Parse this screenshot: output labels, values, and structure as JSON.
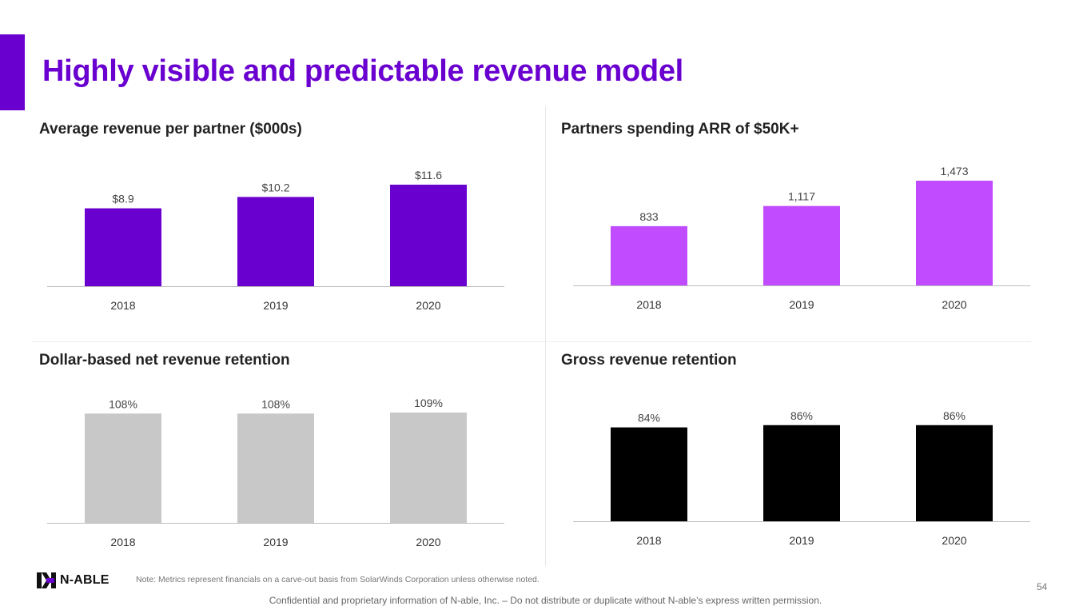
{
  "slide": {
    "title": "Highly visible and predictable revenue model",
    "accent_color": "#6a00d0",
    "footnote": "Note: Metrics represent financials on a carve-out basis from SolarWinds Corporation unless otherwise noted.",
    "page_number": "54",
    "confidential": "Confidential and proprietary information of N-able, Inc. – Do not distribute or duplicate without N-able’s express written permission.",
    "logo_text": "N-ABLE"
  },
  "chart_data": [
    {
      "type": "bar",
      "title": "Average revenue per partner ($000s)",
      "categories": [
        "2018",
        "2019",
        "2020"
      ],
      "values": [
        8.9,
        10.2,
        11.6
      ],
      "labels": [
        "$8.9",
        "$10.2",
        "$11.6"
      ],
      "ylim": [
        0,
        11.6
      ],
      "color": "#6a00d0"
    },
    {
      "type": "bar",
      "title": "Partners spending ARR of $50K+",
      "categories": [
        "2018",
        "2019",
        "2020"
      ],
      "values": [
        833,
        1117,
        1473
      ],
      "labels": [
        "833",
        "1,117",
        "1,473"
      ],
      "ylim": [
        0,
        1473
      ],
      "color": "#c04bff"
    },
    {
      "type": "bar",
      "title": "Dollar-based net revenue retention",
      "categories": [
        "2018",
        "2019",
        "2020"
      ],
      "values": [
        108,
        108,
        109
      ],
      "labels": [
        "108%",
        "108%",
        "109%"
      ],
      "ylim": [
        0,
        109
      ],
      "color": "#c8c8c8"
    },
    {
      "type": "bar",
      "title": "Gross revenue retention",
      "categories": [
        "2018",
        "2019",
        "2020"
      ],
      "values": [
        84,
        86,
        86
      ],
      "labels": [
        "84%",
        "86%",
        "86%"
      ],
      "ylim": [
        0,
        98
      ],
      "color": "#000000"
    }
  ]
}
